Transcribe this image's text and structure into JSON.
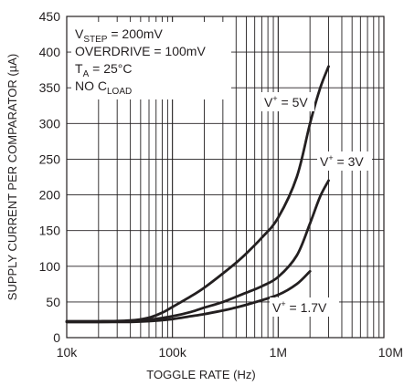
{
  "chart_data": {
    "type": "line",
    "xlabel": "TOGGLE RATE (Hz)",
    "ylabel": "SUPPLY CURRENT PER COMPARATOR (µA)",
    "x_scale": "log",
    "xlim": [
      10000,
      10000000
    ],
    "ylim": [
      0,
      450
    ],
    "x_ticks": [
      10000,
      100000,
      1000000,
      10000000
    ],
    "x_tick_labels": [
      "10k",
      "100k",
      "1M",
      "10M"
    ],
    "y_ticks": [
      0,
      50,
      100,
      150,
      200,
      250,
      300,
      350,
      400,
      450
    ],
    "y_tick_labels": [
      "0",
      "50",
      "100",
      "150",
      "200",
      "250",
      "300",
      "350",
      "400",
      "450"
    ],
    "grid": true,
    "conditions": {
      "vstep": {
        "prefix": "V",
        "sub": "STEP",
        "suffix": " = 200mV"
      },
      "overdrive": "OVERDRIVE = 100mV",
      "ta": {
        "prefix": "T",
        "sub": "A",
        "suffix": " = 25°C"
      },
      "cload": {
        "prefix": "NO C",
        "sub": "LOAD"
      }
    },
    "series": [
      {
        "label": {
          "prefix": "V",
          "sup": "+",
          "suffix": " = 5V"
        },
        "x": [
          10000,
          20000,
          40000,
          60000,
          80000,
          100000,
          150000,
          200000,
          300000,
          400000,
          500000,
          700000,
          1000000,
          1500000,
          2000000,
          2500000,
          3000000
        ],
        "y": [
          23,
          23,
          24,
          28,
          35,
          43,
          58,
          70,
          90,
          105,
          118,
          140,
          168,
          225,
          300,
          350,
          380
        ]
      },
      {
        "label": {
          "prefix": "V",
          "sup": "+",
          "suffix": " = 3V"
        },
        "x": [
          10000,
          20000,
          40000,
          60000,
          100000,
          150000,
          200000,
          300000,
          500000,
          700000,
          1000000,
          1500000,
          2000000,
          2500000,
          3000000
        ],
        "y": [
          22,
          22,
          23,
          25,
          30,
          36,
          42,
          50,
          63,
          72,
          85,
          115,
          160,
          198,
          220
        ]
      },
      {
        "label": {
          "prefix": "V",
          "sup": "+",
          "suffix": " = 1.7V"
        },
        "x": [
          10000,
          20000,
          40000,
          60000,
          100000,
          150000,
          200000,
          300000,
          500000,
          1000000,
          1500000,
          2000000
        ],
        "y": [
          22,
          22,
          22,
          23,
          26,
          30,
          33,
          38,
          46,
          60,
          75,
          93
        ]
      }
    ]
  }
}
